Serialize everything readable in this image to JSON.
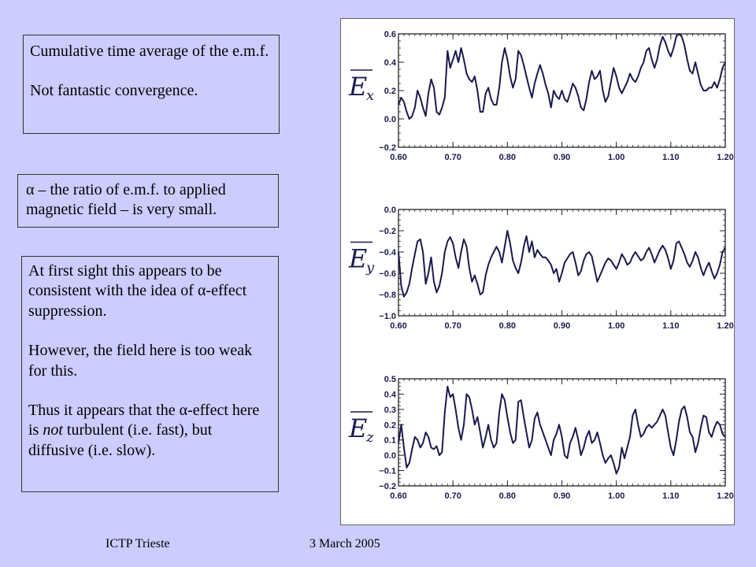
{
  "slide": {
    "box1": {
      "line1": "Cumulative time average of the e.m.f.",
      "line2": "Not fantastic convergence."
    },
    "box2": {
      "line1": "α – the ratio of e.m.f. to applied magnetic field – is very small."
    },
    "box3": {
      "p1": "At first sight this appears to be consistent with the idea of α-effect suppression.",
      "p2": "However, the field here is too weak for this.",
      "p3_pre": "Thus it appears that the α-effect here is ",
      "p3_em": "not",
      "p3_post": " turbulent (i.e. fast), but diffusive (i.e. slow)."
    },
    "footer_left": "ICTP Trieste",
    "footer_right": "3 March 2005"
  },
  "chart_data": [
    {
      "type": "line",
      "ylabel": "Ex",
      "ylabel_base": "E",
      "ylabel_sub": "x",
      "xlim": [
        0.6,
        1.2
      ],
      "ylim": [
        -0.2,
        0.6
      ],
      "xticks": [
        0.6,
        0.7,
        0.8,
        0.9,
        1.0,
        1.1,
        1.2
      ],
      "xtick_labels": [
        "0.60",
        "0.70",
        "0.80",
        "0.90",
        "1.00",
        "1.10",
        "1.20"
      ],
      "yticks": [
        -0.2,
        0.0,
        0.2,
        0.4,
        0.6
      ],
      "ytick_labels": [
        "−0.2",
        "0.0",
        "0.2",
        "0.4",
        "0.6"
      ],
      "grid": false,
      "color": "#1a1a4d",
      "x": [
        0.6,
        0.605,
        0.61,
        0.615,
        0.62,
        0.625,
        0.63,
        0.635,
        0.64,
        0.645,
        0.65,
        0.655,
        0.66,
        0.665,
        0.67,
        0.675,
        0.68,
        0.685,
        0.69,
        0.695,
        0.7,
        0.705,
        0.71,
        0.715,
        0.72,
        0.725,
        0.73,
        0.735,
        0.74,
        0.745,
        0.75,
        0.755,
        0.76,
        0.765,
        0.77,
        0.775,
        0.78,
        0.785,
        0.79,
        0.795,
        0.8,
        0.805,
        0.81,
        0.815,
        0.82,
        0.825,
        0.83,
        0.835,
        0.84,
        0.845,
        0.85,
        0.855,
        0.86,
        0.865,
        0.87,
        0.875,
        0.88,
        0.885,
        0.89,
        0.895,
        0.9,
        0.905,
        0.91,
        0.915,
        0.92,
        0.925,
        0.93,
        0.935,
        0.94,
        0.945,
        0.95,
        0.955,
        0.96,
        0.965,
        0.97,
        0.975,
        0.98,
        0.985,
        0.99,
        0.995,
        1.0,
        1.005,
        1.01,
        1.015,
        1.02,
        1.025,
        1.03,
        1.035,
        1.04,
        1.045,
        1.05,
        1.055,
        1.06,
        1.065,
        1.07,
        1.075,
        1.08,
        1.085,
        1.09,
        1.095,
        1.1,
        1.105,
        1.11,
        1.115,
        1.12,
        1.125,
        1.13,
        1.135,
        1.14,
        1.145,
        1.15,
        1.155,
        1.16,
        1.165,
        1.17,
        1.175,
        1.18,
        1.185,
        1.19,
        1.195,
        1.2
      ],
      "values": [
        0.1,
        0.15,
        0.12,
        0.05,
        0.0,
        0.02,
        0.08,
        0.2,
        0.15,
        0.08,
        0.02,
        0.18,
        0.28,
        0.22,
        0.05,
        0.03,
        0.08,
        0.15,
        0.48,
        0.36,
        0.42,
        0.48,
        0.4,
        0.5,
        0.42,
        0.32,
        0.28,
        0.26,
        0.3,
        0.2,
        0.05,
        0.05,
        0.18,
        0.22,
        0.14,
        0.1,
        0.1,
        0.22,
        0.4,
        0.5,
        0.42,
        0.3,
        0.22,
        0.28,
        0.48,
        0.45,
        0.38,
        0.3,
        0.22,
        0.15,
        0.25,
        0.32,
        0.38,
        0.32,
        0.24,
        0.18,
        0.08,
        0.2,
        0.16,
        0.14,
        0.2,
        0.14,
        0.12,
        0.18,
        0.25,
        0.22,
        0.16,
        0.08,
        0.06,
        0.14,
        0.26,
        0.34,
        0.28,
        0.3,
        0.34,
        0.2,
        0.12,
        0.16,
        0.26,
        0.36,
        0.3,
        0.22,
        0.18,
        0.22,
        0.26,
        0.32,
        0.28,
        0.26,
        0.3,
        0.36,
        0.4,
        0.48,
        0.5,
        0.42,
        0.36,
        0.42,
        0.52,
        0.58,
        0.54,
        0.48,
        0.44,
        0.5,
        0.58,
        0.6,
        0.58,
        0.52,
        0.42,
        0.34,
        0.32,
        0.4,
        0.32,
        0.24,
        0.2,
        0.2,
        0.22,
        0.22,
        0.26,
        0.22,
        0.28,
        0.36,
        0.4
      ]
    },
    {
      "type": "line",
      "ylabel": "Ey",
      "ylabel_base": "E",
      "ylabel_sub": "y",
      "xlim": [
        0.6,
        1.2
      ],
      "ylim": [
        -1.0,
        0.0
      ],
      "xticks": [
        0.6,
        0.7,
        0.8,
        0.9,
        1.0,
        1.1,
        1.2
      ],
      "xtick_labels": [
        "0.60",
        "0.70",
        "0.80",
        "0.90",
        "1.00",
        "1.10",
        "1.20"
      ],
      "yticks": [
        -1.0,
        -0.8,
        -0.6,
        -0.4,
        -0.2,
        0.0
      ],
      "ytick_labels": [
        "−1.0",
        "−0.8",
        "−0.6",
        "−0.4",
        "−0.2",
        "0.0"
      ],
      "grid": false,
      "color": "#1a1a4d",
      "x": [
        0.6,
        0.605,
        0.61,
        0.615,
        0.62,
        0.625,
        0.63,
        0.635,
        0.64,
        0.645,
        0.65,
        0.655,
        0.66,
        0.665,
        0.67,
        0.675,
        0.68,
        0.685,
        0.69,
        0.695,
        0.7,
        0.705,
        0.71,
        0.715,
        0.72,
        0.725,
        0.73,
        0.735,
        0.74,
        0.745,
        0.75,
        0.755,
        0.76,
        0.765,
        0.77,
        0.775,
        0.78,
        0.785,
        0.79,
        0.795,
        0.8,
        0.805,
        0.81,
        0.815,
        0.82,
        0.825,
        0.83,
        0.835,
        0.84,
        0.845,
        0.85,
        0.855,
        0.86,
        0.865,
        0.87,
        0.875,
        0.88,
        0.885,
        0.89,
        0.895,
        0.9,
        0.905,
        0.91,
        0.915,
        0.92,
        0.925,
        0.93,
        0.935,
        0.94,
        0.945,
        0.95,
        0.955,
        0.96,
        0.965,
        0.97,
        0.975,
        0.98,
        0.985,
        0.99,
        0.995,
        1.0,
        1.005,
        1.01,
        1.015,
        1.02,
        1.025,
        1.03,
        1.035,
        1.04,
        1.045,
        1.05,
        1.055,
        1.06,
        1.065,
        1.07,
        1.075,
        1.08,
        1.085,
        1.09,
        1.095,
        1.1,
        1.105,
        1.11,
        1.115,
        1.12,
        1.125,
        1.13,
        1.135,
        1.14,
        1.145,
        1.15,
        1.155,
        1.16,
        1.165,
        1.17,
        1.175,
        1.18,
        1.185,
        1.19,
        1.195,
        1.2
      ],
      "values": [
        -0.4,
        -0.72,
        -0.82,
        -0.78,
        -0.7,
        -0.55,
        -0.42,
        -0.3,
        -0.28,
        -0.4,
        -0.7,
        -0.6,
        -0.45,
        -0.68,
        -0.78,
        -0.72,
        -0.6,
        -0.4,
        -0.3,
        -0.26,
        -0.32,
        -0.45,
        -0.55,
        -0.4,
        -0.28,
        -0.35,
        -0.55,
        -0.68,
        -0.62,
        -0.7,
        -0.8,
        -0.78,
        -0.62,
        -0.52,
        -0.45,
        -0.4,
        -0.35,
        -0.4,
        -0.5,
        -0.35,
        -0.2,
        -0.32,
        -0.48,
        -0.55,
        -0.6,
        -0.5,
        -0.35,
        -0.25,
        -0.4,
        -0.3,
        -0.45,
        -0.38,
        -0.42,
        -0.45,
        -0.45,
        -0.48,
        -0.52,
        -0.6,
        -0.56,
        -0.68,
        -0.6,
        -0.5,
        -0.46,
        -0.42,
        -0.4,
        -0.5,
        -0.62,
        -0.58,
        -0.48,
        -0.42,
        -0.4,
        -0.44,
        -0.56,
        -0.68,
        -0.62,
        -0.56,
        -0.5,
        -0.46,
        -0.48,
        -0.52,
        -0.56,
        -0.5,
        -0.42,
        -0.46,
        -0.52,
        -0.5,
        -0.44,
        -0.4,
        -0.44,
        -0.48,
        -0.46,
        -0.4,
        -0.36,
        -0.42,
        -0.5,
        -0.44,
        -0.38,
        -0.34,
        -0.38,
        -0.46,
        -0.56,
        -0.48,
        -0.32,
        -0.3,
        -0.36,
        -0.42,
        -0.5,
        -0.54,
        -0.48,
        -0.4,
        -0.45,
        -0.55,
        -0.62,
        -0.55,
        -0.5,
        -0.58,
        -0.65,
        -0.6,
        -0.52,
        -0.4,
        -0.36
      ]
    },
    {
      "type": "line",
      "ylabel": "Ez",
      "ylabel_base": "E",
      "ylabel_sub": "z",
      "xlim": [
        0.6,
        1.2
      ],
      "ylim": [
        -0.2,
        0.5
      ],
      "xticks": [
        0.6,
        0.7,
        0.8,
        0.9,
        1.0,
        1.1,
        1.2
      ],
      "xtick_labels": [
        "0.60",
        "0.70",
        "0.80",
        "0.90",
        "1.00",
        "1.10",
        "1.20"
      ],
      "yticks": [
        -0.2,
        -0.1,
        0.0,
        0.1,
        0.2,
        0.3,
        0.4,
        0.5
      ],
      "ytick_labels": [
        "−0.2",
        "−0.1",
        "0.0",
        "0.1",
        "0.2",
        "0.3",
        "0.4",
        "0.5"
      ],
      "grid": false,
      "color": "#1a1a4d",
      "x": [
        0.6,
        0.605,
        0.61,
        0.615,
        0.62,
        0.625,
        0.63,
        0.635,
        0.64,
        0.645,
        0.65,
        0.655,
        0.66,
        0.665,
        0.67,
        0.675,
        0.68,
        0.685,
        0.69,
        0.695,
        0.7,
        0.705,
        0.71,
        0.715,
        0.72,
        0.725,
        0.73,
        0.735,
        0.74,
        0.745,
        0.75,
        0.755,
        0.76,
        0.765,
        0.77,
        0.775,
        0.78,
        0.785,
        0.79,
        0.795,
        0.8,
        0.805,
        0.81,
        0.815,
        0.82,
        0.825,
        0.83,
        0.835,
        0.84,
        0.845,
        0.85,
        0.855,
        0.86,
        0.865,
        0.87,
        0.875,
        0.88,
        0.885,
        0.89,
        0.895,
        0.9,
        0.905,
        0.91,
        0.915,
        0.92,
        0.925,
        0.93,
        0.935,
        0.94,
        0.945,
        0.95,
        0.955,
        0.96,
        0.965,
        0.97,
        0.975,
        0.98,
        0.985,
        0.99,
        0.995,
        1.0,
        1.005,
        1.01,
        1.015,
        1.02,
        1.025,
        1.03,
        1.035,
        1.04,
        1.045,
        1.05,
        1.055,
        1.06,
        1.065,
        1.07,
        1.075,
        1.08,
        1.085,
        1.09,
        1.095,
        1.1,
        1.105,
        1.11,
        1.115,
        1.12,
        1.125,
        1.13,
        1.135,
        1.14,
        1.145,
        1.15,
        1.155,
        1.16,
        1.165,
        1.17,
        1.175,
        1.18,
        1.185,
        1.19,
        1.195,
        1.2
      ],
      "values": [
        0.08,
        0.2,
        0.05,
        -0.08,
        -0.05,
        0.04,
        0.12,
        0.1,
        0.05,
        0.08,
        0.15,
        0.12,
        0.05,
        0.04,
        0.06,
        0.0,
        0.02,
        0.28,
        0.45,
        0.38,
        0.4,
        0.3,
        0.18,
        0.1,
        0.2,
        0.4,
        0.38,
        0.3,
        0.2,
        0.25,
        0.15,
        0.05,
        0.12,
        0.2,
        0.1,
        0.05,
        0.08,
        0.28,
        0.4,
        0.36,
        0.25,
        0.15,
        0.08,
        0.1,
        0.35,
        0.36,
        0.25,
        0.15,
        0.05,
        0.1,
        0.24,
        0.28,
        0.2,
        0.15,
        0.1,
        0.05,
        0.0,
        0.1,
        0.14,
        0.2,
        0.12,
        0.0,
        -0.02,
        0.08,
        0.12,
        0.18,
        0.1,
        0.0,
        0.05,
        0.12,
        0.16,
        0.08,
        0.1,
        0.15,
        0.08,
        0.0,
        -0.05,
        -0.02,
        0.0,
        -0.05,
        -0.12,
        -0.08,
        0.05,
        -0.02,
        0.05,
        0.12,
        0.26,
        0.3,
        0.2,
        0.12,
        0.14,
        0.18,
        0.2,
        0.18,
        0.2,
        0.22,
        0.26,
        0.3,
        0.26,
        0.15,
        0.05,
        0.0,
        0.1,
        0.22,
        0.3,
        0.32,
        0.25,
        0.15,
        0.12,
        0.02,
        0.08,
        0.18,
        0.26,
        0.25,
        0.15,
        0.12,
        0.18,
        0.22,
        0.2,
        0.14,
        0.12
      ]
    }
  ]
}
